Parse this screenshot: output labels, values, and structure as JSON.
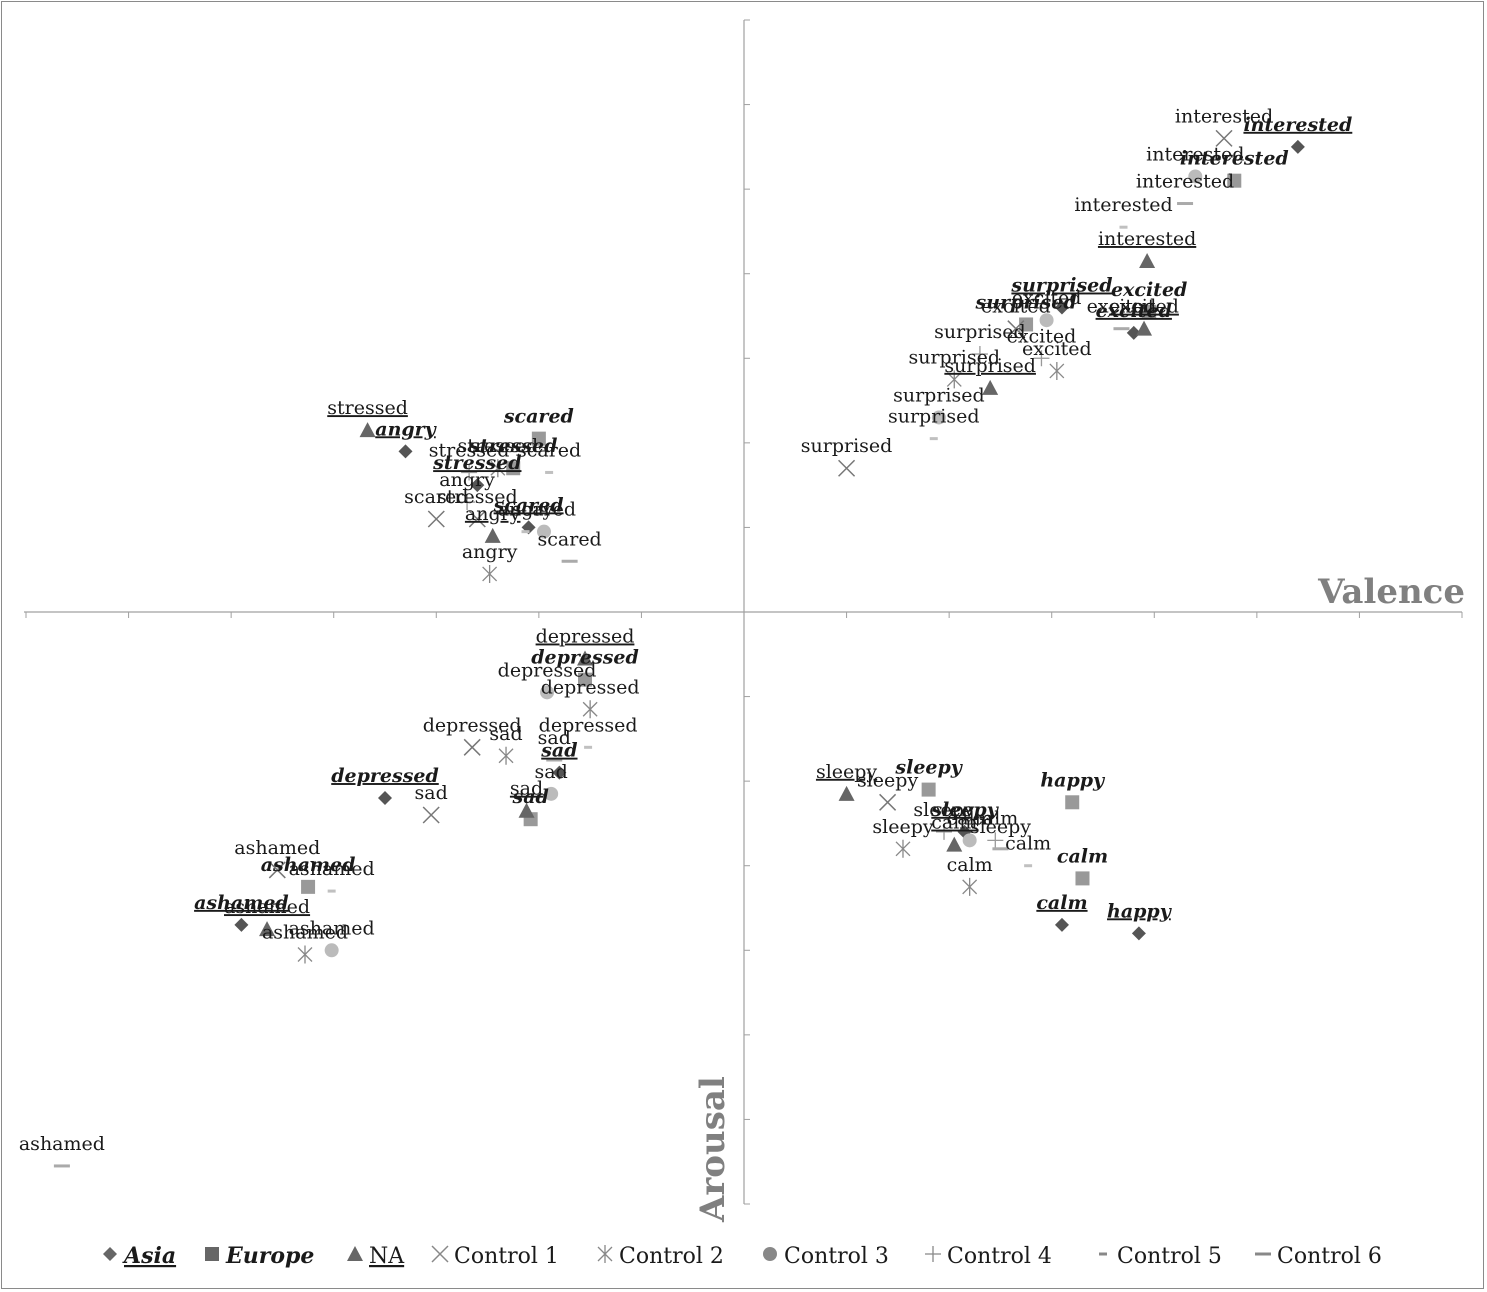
{
  "chart_data": {
    "type": "scatter",
    "title": "",
    "xlabel": "Valence",
    "ylabel": "Arousal",
    "xlim": [
      -0.7,
      0.7
    ],
    "ylim": [
      -0.7,
      0.7
    ],
    "grid": false,
    "legend_position": "bottom",
    "series": [
      {
        "name": "Asia",
        "marker": "diamond",
        "color": "#555555",
        "label_style": "bold-italic-underline",
        "points": [
          {
            "label": "interested",
            "x": 0.54,
            "y": 0.55
          },
          {
            "label": "excited",
            "x": 0.38,
            "y": 0.33
          },
          {
            "label": "surprised",
            "x": 0.31,
            "y": 0.36
          },
          {
            "label": "stressed",
            "x": -0.26,
            "y": 0.15
          },
          {
            "label": "angry",
            "x": -0.33,
            "y": 0.19
          },
          {
            "label": "scared",
            "x": -0.21,
            "y": 0.1
          },
          {
            "label": "depressed",
            "x": -0.35,
            "y": -0.22
          },
          {
            "label": "sad",
            "x": -0.18,
            "y": -0.19
          },
          {
            "label": "ashamed",
            "x": -0.49,
            "y": -0.37
          },
          {
            "label": "happy",
            "x": 0.385,
            "y": -0.38
          },
          {
            "label": "calm",
            "x": 0.31,
            "y": -0.37
          },
          {
            "label": "sleepy",
            "x": 0.215,
            "y": -0.26
          }
        ]
      },
      {
        "name": "Europe",
        "marker": "square",
        "color": "#999999",
        "label_style": "bold-italic",
        "points": [
          {
            "label": "interested",
            "x": 0.478,
            "y": 0.51
          },
          {
            "label": "excited",
            "x": 0.395,
            "y": 0.355
          },
          {
            "label": "surprised",
            "x": 0.275,
            "y": 0.34
          },
          {
            "label": "stressed",
            "x": -0.225,
            "y": 0.17
          },
          {
            "label": "scared",
            "x": -0.2,
            "y": 0.205
          },
          {
            "label": "depressed",
            "x": -0.155,
            "y": -0.08
          },
          {
            "label": "sad",
            "x": -0.208,
            "y": -0.245
          },
          {
            "label": "ashamed",
            "x": -0.425,
            "y": -0.325
          },
          {
            "label": "happy",
            "x": 0.32,
            "y": -0.225
          },
          {
            "label": "calm",
            "x": 0.33,
            "y": -0.315
          },
          {
            "label": "sleepy",
            "x": 0.18,
            "y": -0.21
          }
        ]
      },
      {
        "name": "NA",
        "marker": "triangle",
        "color": "#666666",
        "label_style": "underline",
        "points": [
          {
            "label": "interested",
            "x": 0.393,
            "y": 0.415
          },
          {
            "label": "excited",
            "x": 0.39,
            "y": 0.335
          },
          {
            "label": "surprised",
            "x": 0.24,
            "y": 0.265
          },
          {
            "label": "stressed",
            "x": -0.367,
            "y": 0.215
          },
          {
            "label": "angry",
            "x": -0.245,
            "y": 0.09
          },
          {
            "label": "depressed",
            "x": -0.155,
            "y": -0.055
          },
          {
            "label": "sad",
            "x": -0.212,
            "y": -0.235
          },
          {
            "label": "ashamed",
            "x": -0.465,
            "y": -0.375
          },
          {
            "label": "calm",
            "x": 0.205,
            "y": -0.275
          },
          {
            "label": "sleepy",
            "x": 0.1,
            "y": -0.215
          }
        ]
      },
      {
        "name": "Control 1",
        "marker": "x",
        "color": "#777777",
        "label_style": "plain",
        "points": [
          {
            "label": "surprised",
            "x": 0.1,
            "y": 0.17
          },
          {
            "label": "stressed",
            "x": -0.26,
            "y": 0.11
          },
          {
            "label": "scared",
            "x": -0.3,
            "y": 0.11
          },
          {
            "label": "depressed",
            "x": -0.265,
            "y": -0.16
          },
          {
            "label": "sad",
            "x": -0.305,
            "y": -0.24
          },
          {
            "label": "ashamed",
            "x": -0.455,
            "y": -0.305
          },
          {
            "label": "excited",
            "x": 0.265,
            "y": 0.335
          },
          {
            "label": "sleepy",
            "x": 0.14,
            "y": -0.225
          },
          {
            "label": "interested",
            "x": 0.468,
            "y": 0.56
          }
        ]
      },
      {
        "name": "Control 2",
        "marker": "asterisk",
        "color": "#888888",
        "label_style": "plain",
        "points": [
          {
            "label": "angry",
            "x": -0.248,
            "y": 0.045
          },
          {
            "label": "stressed",
            "x": -0.24,
            "y": 0.17
          },
          {
            "label": "depressed",
            "x": -0.15,
            "y": -0.115
          },
          {
            "label": "sad",
            "x": -0.232,
            "y": -0.17
          },
          {
            "label": "ashamed",
            "x": -0.428,
            "y": -0.405
          },
          {
            "label": "calm",
            "x": 0.22,
            "y": -0.325
          },
          {
            "label": "sleepy",
            "x": 0.155,
            "y": -0.28
          },
          {
            "label": "excited",
            "x": 0.305,
            "y": 0.285
          },
          {
            "label": "surprised",
            "x": 0.205,
            "y": 0.275
          }
        ]
      },
      {
        "name": "Control 3",
        "marker": "circle",
        "color": "#bbbbbb",
        "label_style": "plain",
        "points": [
          {
            "label": "scared",
            "x": -0.195,
            "y": 0.095
          },
          {
            "label": "depressed",
            "x": -0.192,
            "y": -0.095
          },
          {
            "label": "sad",
            "x": -0.188,
            "y": -0.215
          },
          {
            "label": "ashamed",
            "x": -0.402,
            "y": -0.4
          },
          {
            "label": "surprised",
            "x": 0.19,
            "y": 0.23
          },
          {
            "label": "interested",
            "x": 0.44,
            "y": 0.515
          },
          {
            "label": "excited",
            "x": 0.295,
            "y": 0.345
          },
          {
            "label": "calm",
            "x": 0.22,
            "y": -0.27
          }
        ]
      },
      {
        "name": "Control 4",
        "marker": "plus",
        "color": "#999999",
        "label_style": "plain",
        "points": [
          {
            "label": "stressed",
            "x": -0.268,
            "y": 0.165
          },
          {
            "label": "angry",
            "x": -0.27,
            "y": 0.13
          },
          {
            "label": "excited",
            "x": 0.29,
            "y": 0.3
          },
          {
            "label": "surprised",
            "x": 0.23,
            "y": 0.305
          },
          {
            "label": "calm",
            "x": 0.245,
            "y": -0.27
          },
          {
            "label": "sleepy",
            "x": 0.195,
            "y": -0.26
          }
        ]
      },
      {
        "name": "Control 5",
        "marker": "shortdash",
        "color": "#c0c0c0",
        "label_style": "plain",
        "points": [
          {
            "label": "interested",
            "x": 0.37,
            "y": 0.455
          },
          {
            "label": "surprised",
            "x": 0.185,
            "y": 0.205
          },
          {
            "label": "scared",
            "x": -0.19,
            "y": 0.165
          },
          {
            "label": "depressed",
            "x": -0.152,
            "y": -0.16
          },
          {
            "label": "ashamed",
            "x": -0.402,
            "y": -0.33
          },
          {
            "label": "calm",
            "x": 0.277,
            "y": -0.3
          },
          {
            "label": "angry",
            "x": -0.213,
            "y": 0.095
          }
        ]
      },
      {
        "name": "Control 6",
        "marker": "longdash",
        "color": "#aaaaaa",
        "label_style": "plain",
        "points": [
          {
            "label": "interested",
            "x": 0.43,
            "y": 0.483
          },
          {
            "label": "excited",
            "x": 0.368,
            "y": 0.335
          },
          {
            "label": "scared",
            "x": -0.17,
            "y": 0.06
          },
          {
            "label": "ashamed",
            "x": -0.665,
            "y": -0.655
          },
          {
            "label": "sad",
            "x": -0.185,
            "y": -0.175
          },
          {
            "label": "sleepy",
            "x": 0.25,
            "y": -0.28
          }
        ]
      }
    ],
    "legend": [
      {
        "name": "Asia",
        "marker": "diamond",
        "style": "bold-italic-underline"
      },
      {
        "name": "Europe",
        "marker": "square",
        "style": "bold-italic"
      },
      {
        "name": "NA",
        "marker": "triangle",
        "style": "underline"
      },
      {
        "name": "Control 1",
        "marker": "x",
        "style": "plain"
      },
      {
        "name": "Control 2",
        "marker": "asterisk",
        "style": "plain"
      },
      {
        "name": "Control 3",
        "marker": "circle",
        "style": "plain"
      },
      {
        "name": "Control 4",
        "marker": "plus",
        "style": "plain"
      },
      {
        "name": "Control 5",
        "marker": "shortdash",
        "style": "plain"
      },
      {
        "name": "Control 6",
        "marker": "longdash",
        "style": "plain"
      }
    ]
  },
  "colors": {
    "axis": "#a0a0a0",
    "axis_title": "#808080",
    "text": "#1a1a1a"
  }
}
